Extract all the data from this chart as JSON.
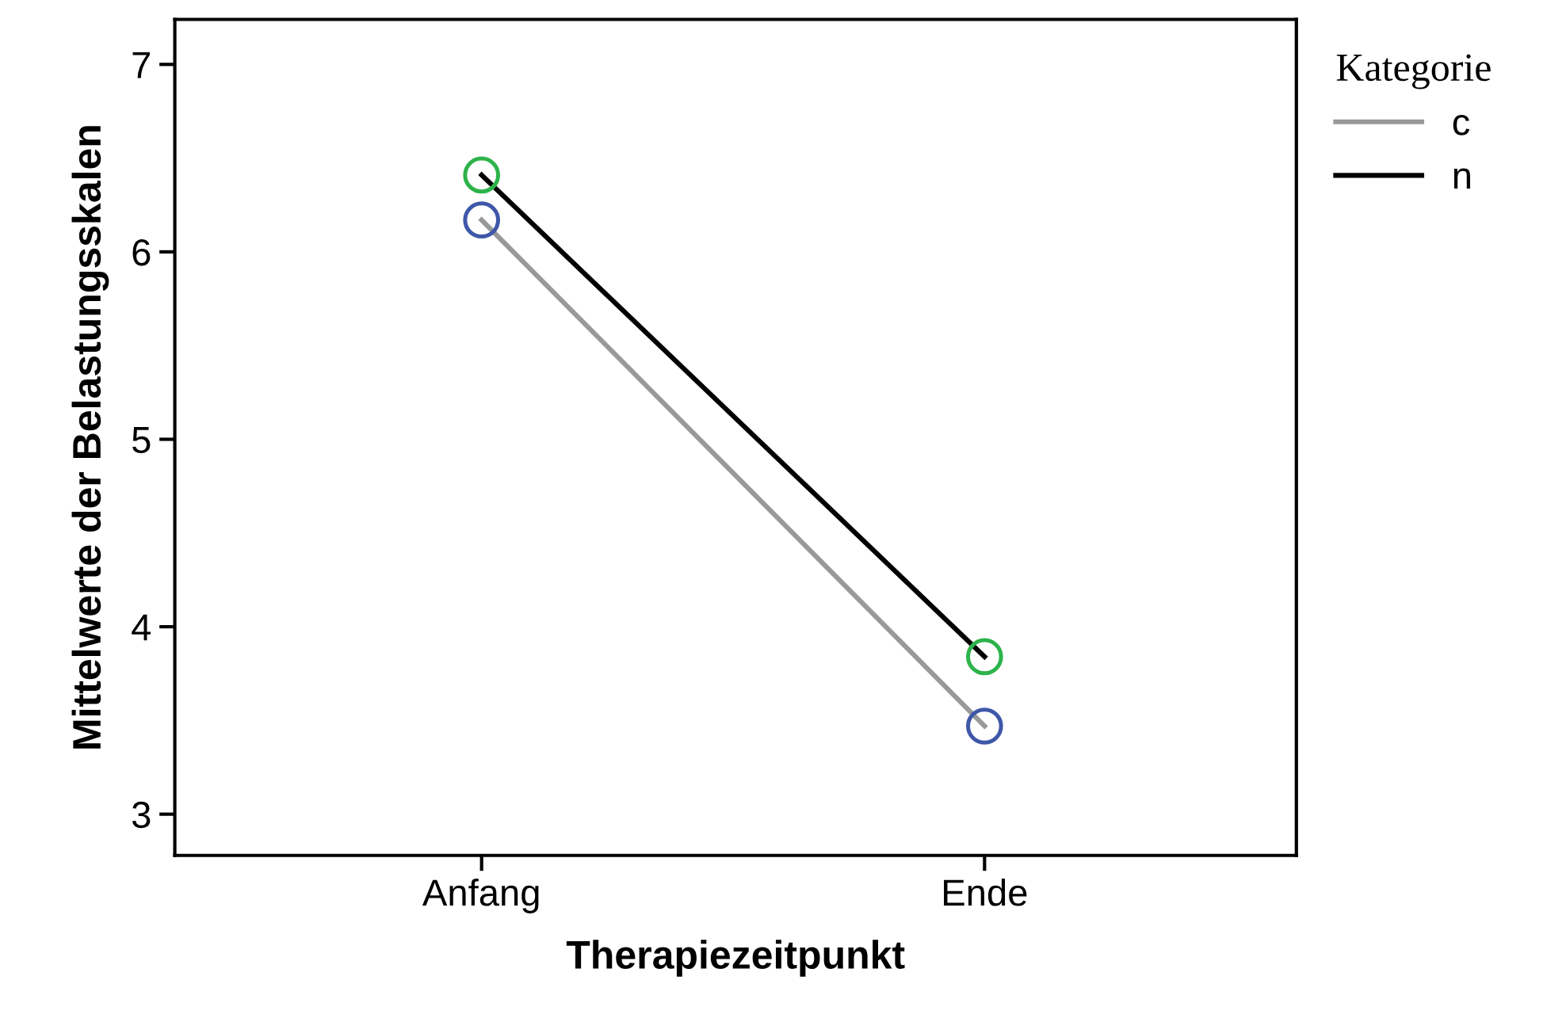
{
  "chart_data": {
    "type": "line",
    "xlabel": "Therapiezeitpunkt",
    "ylabel": "Mittelwerte der Belastungsskalen",
    "legend_title": "Kategorie",
    "categories": [
      "Anfang",
      "Ende"
    ],
    "series": [
      {
        "name": "c",
        "color": "#999999",
        "colors": [
          "#3f57a8",
          "#3f57a8"
        ],
        "values": [
          6.17,
          3.47
        ]
      },
      {
        "name": "n",
        "color": "#000000",
        "colors": [
          "#2db34a",
          "#2db34a"
        ],
        "values": [
          6.41,
          3.84
        ]
      }
    ],
    "ylim": [
      2.78,
      7.24
    ],
    "yticks": [
      3,
      4,
      5,
      6,
      7
    ],
    "marker": "circle",
    "line_style": "solid",
    "legend": "right",
    "grid": false
  }
}
